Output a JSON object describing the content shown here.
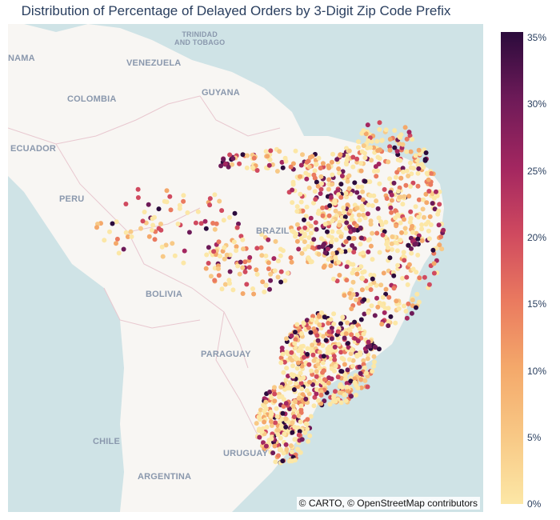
{
  "title": "Distribution of Percentage of Delayed Orders by 3-Digit Zip Code Prefix",
  "attribution": "© CARTO, © OpenStreetMap contributors",
  "map_labels": {
    "trinidad": "TRINIDAD\nAND TOBAGO",
    "panama": "NAMA",
    "venezuela": "VENEZUELA",
    "guyana": "GUYANA",
    "colombia": "COLOMBIA",
    "ecuador": "ECUADOR",
    "peru": "PERU",
    "brazil": "BRAZIL",
    "bolivia": "BOLIVIA",
    "paraguay": "PARAGUAY",
    "chile": "CHILE",
    "uruguay": "URUGUAY",
    "argentina": "ARGENTINA"
  },
  "colorbar": {
    "ticks": [
      "35%",
      "30%",
      "25%",
      "20%",
      "15%",
      "10%",
      "5%",
      "0%"
    ],
    "colors": [
      "#2b0b3c",
      "#6d1a58",
      "#a42760",
      "#d04a5f",
      "#ea7a5f",
      "#f4a86a",
      "#f8c986",
      "#fce7a6"
    ]
  },
  "colors": {
    "ocean": "#cfe3e6",
    "land": "#f8f6f3",
    "border": "#e8c7cf"
  }
}
